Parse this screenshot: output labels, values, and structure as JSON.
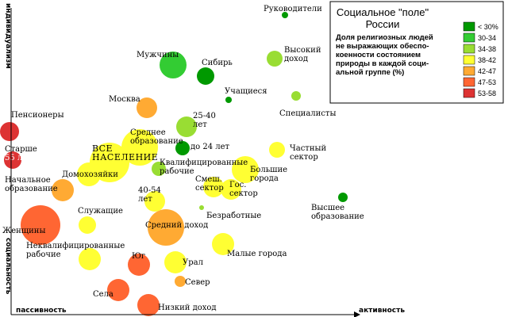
{
  "chart_data": {
    "type": "scatter",
    "x_axis_label": "активность",
    "x_axis_low_label": "пассивность",
    "y_axis_low_label": "социальность",
    "y_axis_high_label": "индивидуализм",
    "legend": {
      "title": "Социальное \"поле\"\nРоссии",
      "subtitle": "Доля религиозных людей\nне выражающих обеспо-\nкоенности состоянием\nприроды в каждой соци-\nальной группе (%)",
      "items": [
        {
          "label": "< 30%",
          "color": "#009900"
        },
        {
          "label": "30-34",
          "color": "#33cc33"
        },
        {
          "label": "34-38",
          "color": "#99dd33"
        },
        {
          "label": "38-42",
          "color": "#ffff33"
        },
        {
          "label": "42-47",
          "color": "#ffaa33"
        },
        {
          "label": "47-53",
          "color": "#ff6633"
        },
        {
          "label": "53-58",
          "color": "#dd3333"
        }
      ]
    },
    "bubbles": [
      {
        "label": "Руководители",
        "bin": "< 30%"
      },
      {
        "label": "Мужчины",
        "bin": "30-34"
      },
      {
        "label": "Сибирь",
        "bin": "< 30%"
      },
      {
        "label": "Высокий\nдоход",
        "bin": "34-38"
      },
      {
        "label": "Учащиеся",
        "bin": "< 30%"
      },
      {
        "label": "Специалисты",
        "bin": "34-38"
      },
      {
        "label": "Москва",
        "bin": "42-47"
      },
      {
        "label": "25-40\nлет",
        "bin": "34-38"
      },
      {
        "label": "Пенсионеры",
        "bin": "53-58"
      },
      {
        "label": "Среднее\nобразование",
        "bin": "38-42"
      },
      {
        "label": "до 24 лет",
        "bin": "< 30%"
      },
      {
        "label": "Частный\nсектор",
        "bin": "38-42"
      },
      {
        "label": "Старше\n55 лет",
        "bin": "53-58"
      },
      {
        "label": "ВСЕ\nНАСЕЛЕНИЕ",
        "bin": "38-42"
      },
      {
        "label": "Квалифицированные\nрабочие",
        "bin": "34-38"
      },
      {
        "label": "Большие\nгорода",
        "bin": "38-42"
      },
      {
        "label": "Домохозяйки",
        "bin": "38-42"
      },
      {
        "label": "Начальное\nобразование",
        "bin": "42-47"
      },
      {
        "label": "Смеш.\nсектор",
        "bin": "38-42"
      },
      {
        "label": "Гос.\nсектор",
        "bin": "38-42"
      },
      {
        "label": "40-54\nлет",
        "bin": "38-42"
      },
      {
        "label": "Высшее\nобразование",
        "bin": "< 30%"
      },
      {
        "label": "Безработные",
        "bin": "34-38"
      },
      {
        "label": "Служащие",
        "bin": "38-42"
      },
      {
        "label": "Средний доход",
        "bin": "42-47"
      },
      {
        "label": "Женщины",
        "bin": "47-53"
      },
      {
        "label": "Неквалифицированные\nрабочие",
        "bin": "38-42"
      },
      {
        "label": "Малые города",
        "bin": "38-42"
      },
      {
        "label": "Юг",
        "bin": "47-53"
      },
      {
        "label": "Урал",
        "bin": "38-42"
      },
      {
        "label": "Север",
        "bin": "42-47"
      },
      {
        "label": "Села",
        "bin": "47-53"
      },
      {
        "label": "Низкий доход",
        "bin": "47-53"
      }
    ]
  }
}
